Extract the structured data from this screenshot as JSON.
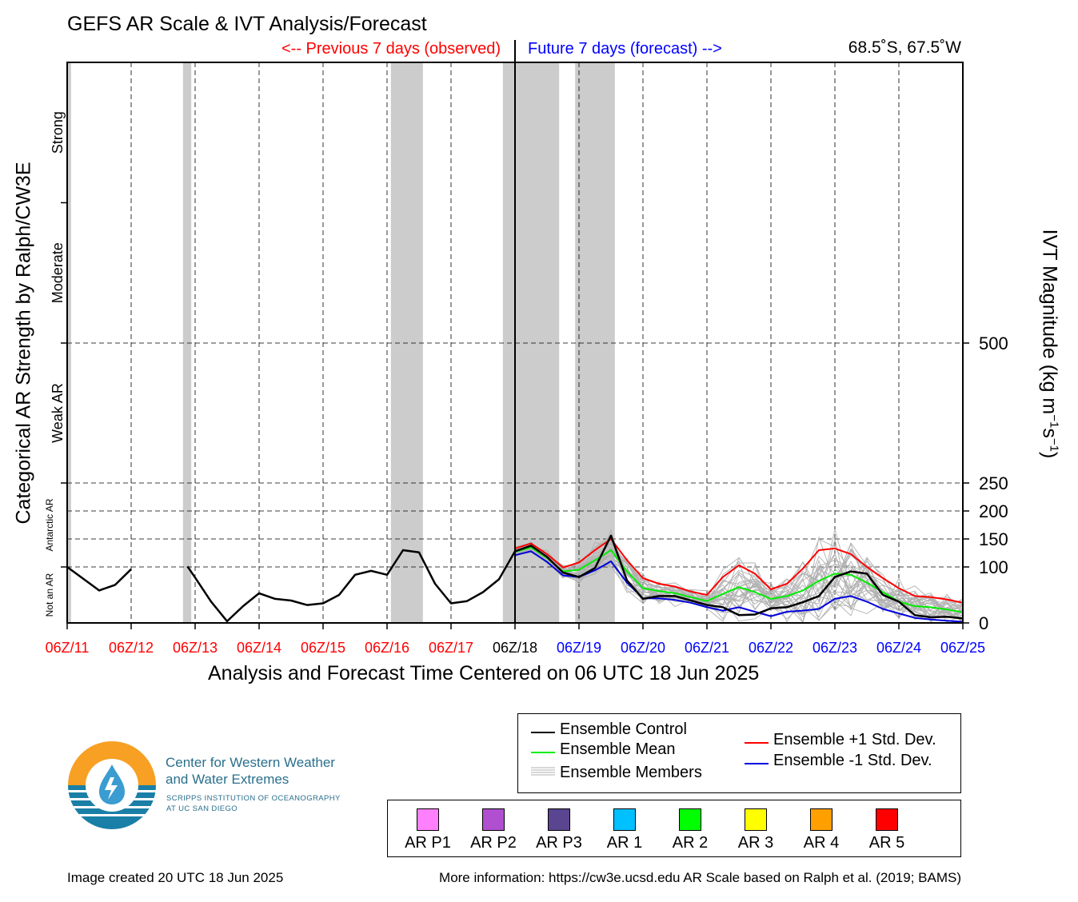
{
  "header": {
    "title": "GEFS AR Scale & IVT Analysis/Forecast",
    "previous_label": "<-- Previous 7 days (observed)",
    "future_label": "Future 7 days (forecast) -->",
    "location": "68.5˚S, 67.5˚W"
  },
  "colors": {
    "observed": "#ff0000",
    "forecast": "#0000ff",
    "control": "#000000",
    "mean": "#00ee00",
    "plus_std": "#ff0000",
    "minus_std": "#0000dd",
    "members": "#b0b0b0",
    "shading": "#cccccc"
  },
  "chart_data": {
    "type": "line",
    "xlabel": "Analysis and Forecast Time Centered on 06 UTC 18 Jun 2025",
    "left_ylabel": "Categorical AR Strength by Ralph/CW3E",
    "right_ylabel": "IVT Magnitude (kg m⁻¹s⁻¹)",
    "x_unit": "days since 06Z/11 Jun 2025",
    "xlim": [
      0,
      14
    ],
    "ylim": [
      0,
      1000
    ],
    "grid": true,
    "x_ticks": [
      {
        "day": 0,
        "label": "06Z/11",
        "period": "observed"
      },
      {
        "day": 1,
        "label": "06Z/12",
        "period": "observed"
      },
      {
        "day": 2,
        "label": "06Z/13",
        "period": "observed"
      },
      {
        "day": 3,
        "label": "06Z/14",
        "period": "observed"
      },
      {
        "day": 4,
        "label": "06Z/15",
        "period": "observed"
      },
      {
        "day": 5,
        "label": "06Z/16",
        "period": "observed"
      },
      {
        "day": 6,
        "label": "06Z/17",
        "period": "observed"
      },
      {
        "day": 7,
        "label": "06Z/18",
        "period": "now"
      },
      {
        "day": 8,
        "label": "06Z/19",
        "period": "forecast"
      },
      {
        "day": 9,
        "label": "06Z/20",
        "period": "forecast"
      },
      {
        "day": 10,
        "label": "06Z/21",
        "period": "forecast"
      },
      {
        "day": 11,
        "label": "06Z/22",
        "period": "forecast"
      },
      {
        "day": 12,
        "label": "06Z/23",
        "period": "forecast"
      },
      {
        "day": 13,
        "label": "06Z/24",
        "period": "forecast"
      },
      {
        "day": 14,
        "label": "06Z/25",
        "period": "forecast"
      }
    ],
    "right_ticks": [
      0,
      100,
      150,
      200,
      250,
      500
    ],
    "categories": [
      {
        "label": "Not an AR",
        "from": 0,
        "to": 100
      },
      {
        "label": "Antarctic AR",
        "from": 100,
        "to": 250
      },
      {
        "label": "Weak AR",
        "from": 250,
        "to": 500
      },
      {
        "label": "Moderate",
        "from": 500,
        "to": 750
      },
      {
        "label": "Strong",
        "from": 750,
        "to": 1000
      }
    ],
    "shaded_periods": [
      [
        0.0,
        0.06
      ],
      [
        1.81,
        1.94
      ],
      [
        5.06,
        5.56
      ],
      [
        6.81,
        7.69
      ],
      [
        7.94,
        8.56
      ]
    ],
    "series": [
      {
        "name": "Ensemble Control",
        "color": "#000000",
        "segments": [
          [
            [
              0,
              100
            ],
            [
              0.5,
              58
            ],
            [
              0.75,
              68
            ],
            [
              1,
              96
            ]
          ],
          [
            [
              1.88,
              101
            ],
            [
              2,
              81
            ],
            [
              2.25,
              38
            ],
            [
              2.5,
              3
            ],
            [
              2.75,
              30
            ],
            [
              3,
              53
            ],
            [
              3.25,
              43
            ],
            [
              3.5,
              40
            ],
            [
              3.75,
              32
            ],
            [
              4,
              35
            ],
            [
              4.25,
              50
            ],
            [
              4.5,
              86
            ],
            [
              4.75,
              93
            ],
            [
              5,
              86
            ],
            [
              5.25,
              130
            ],
            [
              5.5,
              126
            ],
            [
              5.75,
              70
            ],
            [
              6,
              35
            ],
            [
              6.25,
              39
            ],
            [
              6.5,
              55
            ],
            [
              6.75,
              78
            ],
            [
              7,
              128
            ],
            [
              7.25,
              138
            ],
            [
              7.5,
              118
            ],
            [
              7.75,
              90
            ],
            [
              8,
              82
            ],
            [
              8.25,
              98
            ],
            [
              8.5,
              156
            ],
            [
              8.75,
              76
            ],
            [
              9,
              43
            ],
            [
              9.25,
              48
            ],
            [
              9.5,
              48
            ],
            [
              9.75,
              40
            ],
            [
              10,
              32
            ],
            [
              10.25,
              28
            ],
            [
              10.5,
              14
            ],
            [
              10.75,
              15
            ],
            [
              11,
              26
            ],
            [
              11.25,
              28
            ],
            [
              11.5,
              37
            ],
            [
              11.75,
              48
            ],
            [
              12,
              82
            ],
            [
              12.25,
              92
            ],
            [
              12.5,
              88
            ],
            [
              12.75,
              50
            ],
            [
              13,
              38
            ],
            [
              13.25,
              14
            ],
            [
              13.5,
              10
            ],
            [
              13.75,
              11
            ],
            [
              14,
              8
            ]
          ]
        ]
      },
      {
        "name": "Ensemble Mean",
        "color": "#00ee00",
        "segments": [
          [
            [
              7,
              127
            ],
            [
              7.25,
              135
            ],
            [
              7.5,
              116
            ],
            [
              7.75,
              92
            ],
            [
              8,
              95
            ],
            [
              8.25,
              112
            ],
            [
              8.5,
              130
            ],
            [
              8.75,
              92
            ],
            [
              9,
              62
            ],
            [
              9.25,
              57
            ],
            [
              9.5,
              53
            ],
            [
              9.75,
              46
            ],
            [
              10,
              39
            ],
            [
              10.25,
              52
            ],
            [
              10.5,
              64
            ],
            [
              10.75,
              55
            ],
            [
              11,
              43
            ],
            [
              11.25,
              48
            ],
            [
              11.5,
              58
            ],
            [
              11.75,
              75
            ],
            [
              12,
              88
            ],
            [
              12.25,
              86
            ],
            [
              12.5,
              72
            ],
            [
              12.75,
              55
            ],
            [
              13,
              38
            ],
            [
              13.25,
              30
            ],
            [
              13.5,
              28
            ],
            [
              13.75,
              24
            ],
            [
              14,
              19
            ]
          ]
        ]
      },
      {
        "name": "Ensemble +1 Std. Dev.",
        "color": "#ff0000",
        "segments": [
          [
            [
              7,
              133
            ],
            [
              7.25,
              142
            ],
            [
              7.5,
              123
            ],
            [
              7.75,
              99
            ],
            [
              8,
              108
            ],
            [
              8.25,
              130
            ],
            [
              8.5,
              150
            ],
            [
              8.75,
              112
            ],
            [
              9,
              80
            ],
            [
              9.25,
              70
            ],
            [
              9.5,
              65
            ],
            [
              9.75,
              56
            ],
            [
              10,
              50
            ],
            [
              10.25,
              82
            ],
            [
              10.5,
              103
            ],
            [
              10.75,
              88
            ],
            [
              11,
              60
            ],
            [
              11.25,
              70
            ],
            [
              11.5,
              97
            ],
            [
              11.75,
              130
            ],
            [
              12,
              133
            ],
            [
              12.25,
              123
            ],
            [
              12.5,
              100
            ],
            [
              12.75,
              80
            ],
            [
              13,
              62
            ],
            [
              13.25,
              48
            ],
            [
              13.5,
              46
            ],
            [
              13.75,
              42
            ],
            [
              14,
              36
            ]
          ]
        ]
      },
      {
        "name": "Ensemble -1 Std. Dev.",
        "color": "#0000dd",
        "segments": [
          [
            [
              7,
              121
            ],
            [
              7.25,
              128
            ],
            [
              7.5,
              109
            ],
            [
              7.75,
              85
            ],
            [
              8,
              82
            ],
            [
              8.25,
              94
            ],
            [
              8.5,
              110
            ],
            [
              8.75,
              72
            ],
            [
              9,
              44
            ],
            [
              9.25,
              44
            ],
            [
              9.5,
              41
            ],
            [
              9.75,
              36
            ],
            [
              10,
              28
            ],
            [
              10.25,
              22
            ],
            [
              10.5,
              28
            ],
            [
              10.75,
              20
            ],
            [
              11,
              12
            ],
            [
              11.25,
              20
            ],
            [
              11.5,
              22
            ],
            [
              11.75,
              25
            ],
            [
              12,
              43
            ],
            [
              12.25,
              48
            ],
            [
              12.5,
              38
            ],
            [
              12.75,
              25
            ],
            [
              13,
              17
            ],
            [
              13.25,
              9
            ],
            [
              13.5,
              6
            ],
            [
              13.75,
              4
            ],
            [
              14,
              2
            ]
          ]
        ]
      }
    ]
  },
  "legend": {
    "control": "Ensemble Control",
    "mean": "Ensemble Mean",
    "members": "Ensemble Members",
    "plus_std": "Ensemble +1 Std. Dev.",
    "minus_std": "Ensemble -1 Std. Dev."
  },
  "ar_categories": [
    {
      "label": "AR P1",
      "color": "#ff80ff"
    },
    {
      "label": "AR P2",
      "color": "#b050d0"
    },
    {
      "label": "AR P3",
      "color": "#5a4590"
    },
    {
      "label": "AR 1",
      "color": "#00c0ff"
    },
    {
      "label": "AR 2",
      "color": "#00ff00"
    },
    {
      "label": "AR 3",
      "color": "#ffff00"
    },
    {
      "label": "AR 4",
      "color": "#ffa000"
    },
    {
      "label": "AR 5",
      "color": "#ff0000"
    }
  ],
  "logo": {
    "name_line1": "Center for Western Weather",
    "name_line2": "and Water Extremes",
    "sub_line1": "SCRIPPS INSTITUTION OF OCEANOGRAPHY",
    "sub_line2": "AT UC SAN DIEGO",
    "orange": "#f7a023",
    "blue": "#1a7fa6",
    "text_color": "#2a6f8d"
  },
  "footer": {
    "created": "Image created 20 UTC 18 Jun 2025",
    "more_info": "More information: https://cw3e.ucsd.edu AR Scale based on Ralph et al. (2019; BAMS)"
  }
}
